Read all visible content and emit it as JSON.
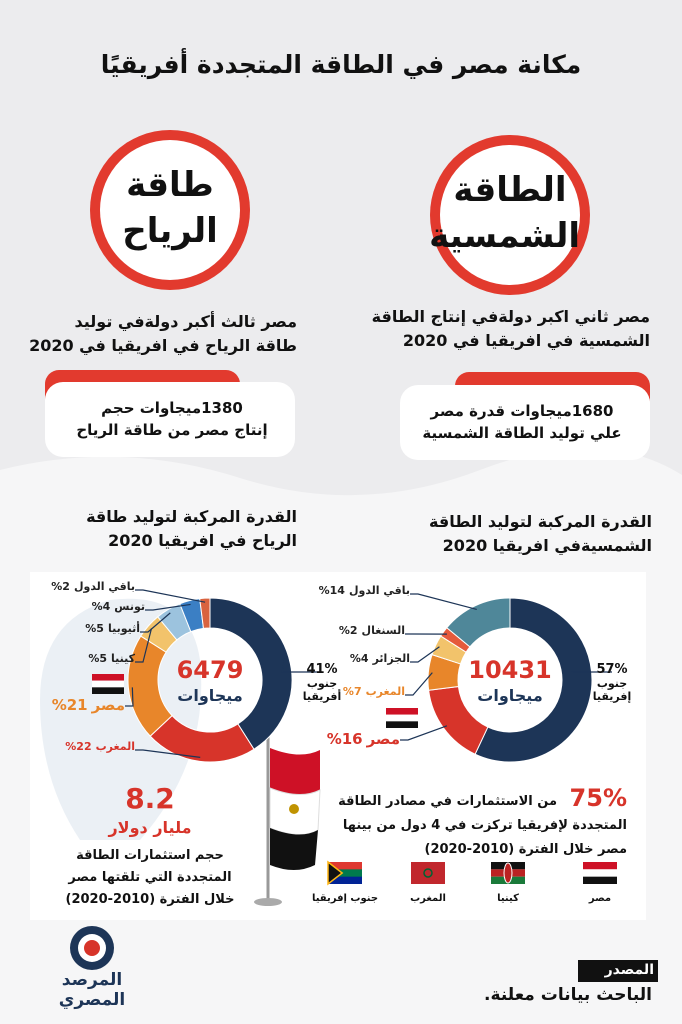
{
  "title": "مكانة مصر في الطاقة المتجددة أفريقيًا",
  "cards": [
    {
      "badge": [
        "الطاقة",
        "الشمسية"
      ],
      "rank": [
        "مصر ثاني اكبر دولةفي إنتاج الطاقة",
        "الشمسية في افريقيا في 2020"
      ],
      "capacity": [
        "1680ميجاوات قدرة مصر",
        "علي توليد الطاقة الشمسية"
      ],
      "section": [
        "القدرة المركبة لتوليد الطاقة",
        "الشمسيةفي افريقيا 2020"
      ]
    },
    {
      "badge": [
        "طاقة",
        "الرياح"
      ],
      "rank": [
        "مصر ثالث أكبر دولةفي توليد",
        "طاقة الرياح في افريقيا في 2020"
      ],
      "capacity": [
        "1380ميجاوات حجم",
        "إنتاج مصر من طاقة الرياح"
      ],
      "section": [
        "القدرة المركبة لتوليد طاقة",
        "الرياح في افريقيا 2020"
      ]
    }
  ],
  "chart_data": [
    {
      "type": "donut",
      "total": 10431,
      "unit": "ميجاوات",
      "categories": [
        "جنوب إفريقيا",
        "مصر",
        "المغرب",
        "الجزائر",
        "السنغال",
        "باقي الدول"
      ],
      "values": [
        57,
        16,
        7,
        4,
        2,
        14
      ],
      "value_labels": [
        "57%",
        "16%",
        "7%",
        "4%",
        "2%",
        "14%"
      ],
      "colors": [
        "#1d3557",
        "#d7342a",
        "#e8862a",
        "#f2c36b",
        "#e55a3c",
        "#4f8799"
      ]
    },
    {
      "type": "donut",
      "total": 6479,
      "unit": "ميجاوات",
      "categories": [
        "جنوب أفريقيا",
        "المغرب",
        "مصر",
        "كينيا",
        "أثيوبيا",
        "تونس",
        "باقي الدول"
      ],
      "values": [
        41,
        22,
        21,
        5,
        5,
        4,
        2
      ],
      "value_labels": [
        "41%",
        "22%",
        "21%",
        "5%",
        "5%",
        "4%",
        "2%"
      ],
      "colors": [
        "#1d3557",
        "#d7342a",
        "#e8862a",
        "#f2c36b",
        "#9cc3de",
        "#3b7fc4",
        "#d9633f"
      ]
    }
  ],
  "investment": {
    "amount": 8.2,
    "unit": "مليار دولار",
    "description": [
      "حجم استثمارات الطاقة",
      "المتجددة التي تلقتها مصر",
      "خلال الفترة (2010-2020)"
    ]
  },
  "concentration": {
    "share": "75%",
    "text": [
      "من الاستثمارات في مصادر الطاقة",
      "المتجددة لإفريقيا تركزت في 4 دول من بينها",
      "مصر خلال الفترة (2010-2020)"
    ],
    "countries": [
      "مصر",
      "كينيا",
      "المغرب",
      "جنوب إفريقيا"
    ]
  },
  "source": {
    "label": "المصدر",
    "text": "الباحث بيانات معلنة."
  },
  "logo": [
    "المرصد",
    "المصري"
  ]
}
